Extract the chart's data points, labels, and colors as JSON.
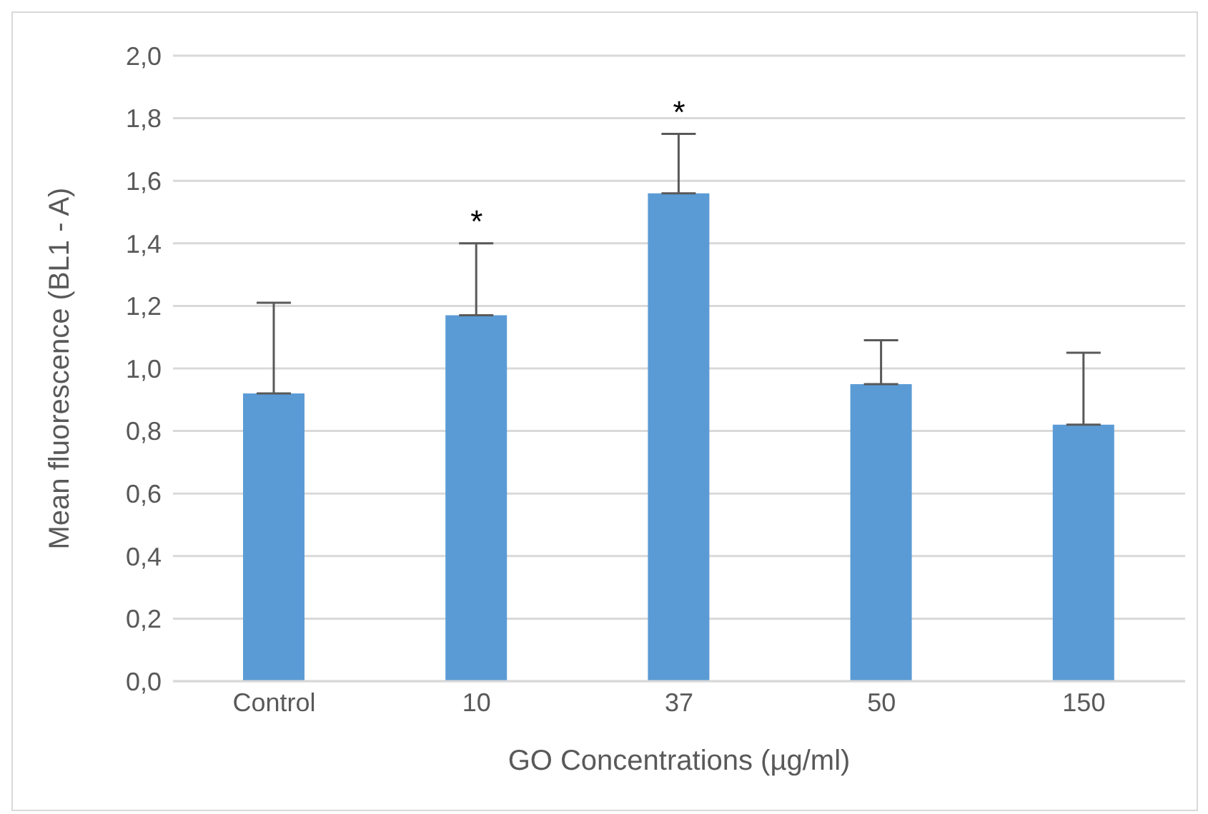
{
  "chart_data": {
    "type": "bar",
    "xlabel": "GO Concentrations (µg/ml)",
    "ylabel": "Mean fluorescence  (BL1 - A)",
    "categories": [
      "Control",
      "10",
      "37",
      "50",
      "150"
    ],
    "values": [
      0.92,
      1.17,
      1.56,
      0.95,
      0.82
    ],
    "errors": [
      [
        0.92,
        1.21
      ],
      [
        1.17,
        1.4
      ],
      [
        1.56,
        1.75
      ],
      [
        0.95,
        1.09
      ],
      [
        0.82,
        1.05
      ]
    ],
    "color": "#5b9bd5",
    "ylim": [
      0,
      2
    ],
    "yticks": [
      {
        "value": 0,
        "label": "0,0"
      },
      {
        "value": 0.2,
        "label": "0,2"
      },
      {
        "value": 0.4,
        "label": "0,4"
      },
      {
        "value": 0.6,
        "label": "0,6"
      },
      {
        "value": 0.8,
        "label": "0,8"
      },
      {
        "value": 1,
        "label": "1,0"
      },
      {
        "value": 1.2,
        "label": "1,2"
      },
      {
        "value": 1.4,
        "label": "1,4"
      },
      {
        "value": 1.6,
        "label": "1,6"
      },
      {
        "value": 1.8,
        "label": "1,8"
      },
      {
        "value": 2,
        "label": "2,0"
      }
    ],
    "grid": "y",
    "annotations": [
      {
        "text": "*",
        "x": "10",
        "y": 1.4
      },
      {
        "text": "*",
        "x": "37",
        "y": 1.75
      }
    ]
  }
}
